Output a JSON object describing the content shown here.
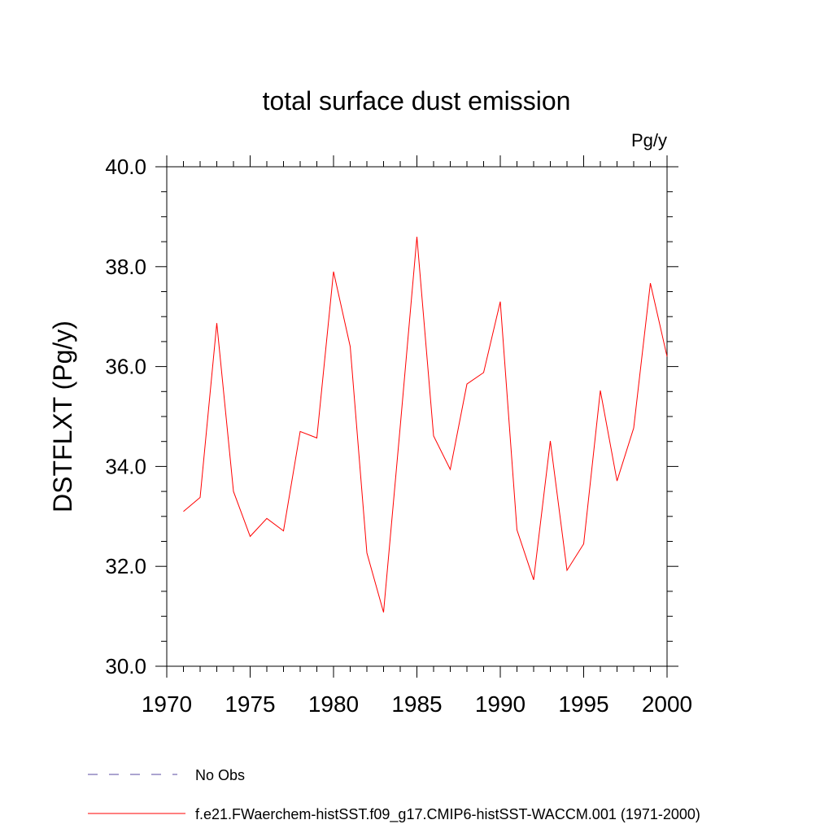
{
  "chart_data": {
    "type": "line",
    "title": "total surface dust emission",
    "units_label": "Pg/y",
    "ylabel": "DSTFLXT  (Pg/y)",
    "xlabel": "",
    "xlim": [
      1970,
      2000
    ],
    "ylim": [
      30.0,
      40.0
    ],
    "x_ticks": [
      1970,
      1975,
      1980,
      1985,
      1990,
      1995,
      2000
    ],
    "y_ticks": [
      "30.0",
      "32.0",
      "34.0",
      "36.0",
      "38.0",
      "40.0"
    ],
    "grid": false,
    "legend_position": "bottom",
    "series": [
      {
        "name": "f.e21.FWaerchem-histSST.f09_g17.CMIP6-histSST-WACCM.001 (1971-2000)",
        "color": "#ff0000",
        "style": "solid",
        "x": [
          1971,
          1972,
          1973,
          1974,
          1975,
          1976,
          1977,
          1978,
          1979,
          1980,
          1981,
          1982,
          1983,
          1984,
          1985,
          1986,
          1987,
          1988,
          1989,
          1990,
          1991,
          1992,
          1993,
          1994,
          1995,
          1996,
          1997,
          1998,
          1999,
          2000
        ],
        "y": [
          33.1,
          33.38,
          36.87,
          33.5,
          32.6,
          32.96,
          32.71,
          34.7,
          34.57,
          37.9,
          36.4,
          32.27,
          31.08,
          34.8,
          38.6,
          34.61,
          33.94,
          35.65,
          35.88,
          37.3,
          32.73,
          31.73,
          34.51,
          31.92,
          32.45,
          35.52,
          33.71,
          34.77,
          37.67,
          36.2
        ]
      }
    ],
    "legend": [
      {
        "label": "No Obs",
        "color": "#5a4aa0",
        "style": "dashed"
      },
      {
        "label": "f.e21.FWaerchem-histSST.f09_g17.CMIP6-histSST-WACCM.001 (1971-2000)",
        "color": "#ff0000",
        "style": "solid"
      }
    ]
  }
}
